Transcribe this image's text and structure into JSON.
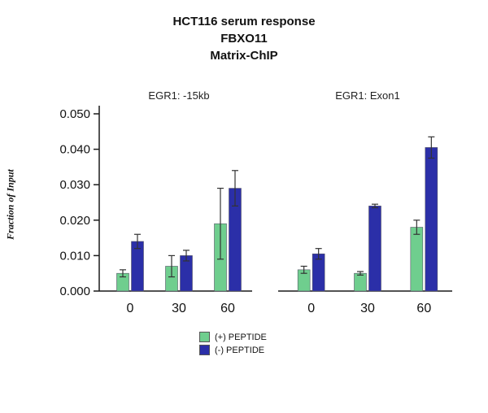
{
  "title": {
    "line1": "HCT116 serum response",
    "line2": "FBXO11",
    "line3": "Matrix-ChIP"
  },
  "chart_data": {
    "type": "bar",
    "ylabel": "Fraction of Input",
    "ylim": [
      0,
      0.05
    ],
    "yticks": [
      0.0,
      0.01,
      0.02,
      0.03,
      0.04,
      0.05
    ],
    "ytick_decimals": 3,
    "grid": false,
    "legend_position": "bottom-center",
    "panels": [
      {
        "title": "EGR1: -15kb",
        "categories": [
          "0",
          "30",
          "60"
        ],
        "series": [
          {
            "name": "(+) PEPTIDE",
            "color": "#6fce8e",
            "values": [
              0.005,
              0.007,
              0.019
            ],
            "errors": [
              0.001,
              0.003,
              0.01
            ]
          },
          {
            "name": "(-) PEPTIDE",
            "color": "#2b2fa8",
            "values": [
              0.014,
              0.01,
              0.029
            ],
            "errors": [
              0.002,
              0.0015,
              0.005
            ]
          }
        ]
      },
      {
        "title": "EGR1: Exon1",
        "categories": [
          "0",
          "30",
          "60"
        ],
        "series": [
          {
            "name": "(+) PEPTIDE",
            "color": "#6fce8e",
            "values": [
              0.006,
              0.005,
              0.018
            ],
            "errors": [
              0.001,
              0.0005,
              0.002
            ]
          },
          {
            "name": "(-) PEPTIDE",
            "color": "#2b2fa8",
            "values": [
              0.0105,
              0.024,
              0.0405
            ],
            "errors": [
              0.0015,
              0.0005,
              0.003
            ]
          }
        ]
      }
    ],
    "legend": [
      {
        "label": "(+) PEPTIDE",
        "color": "#6fce8e"
      },
      {
        "label": "(-) PEPTIDE",
        "color": "#2b2fa8"
      }
    ]
  }
}
